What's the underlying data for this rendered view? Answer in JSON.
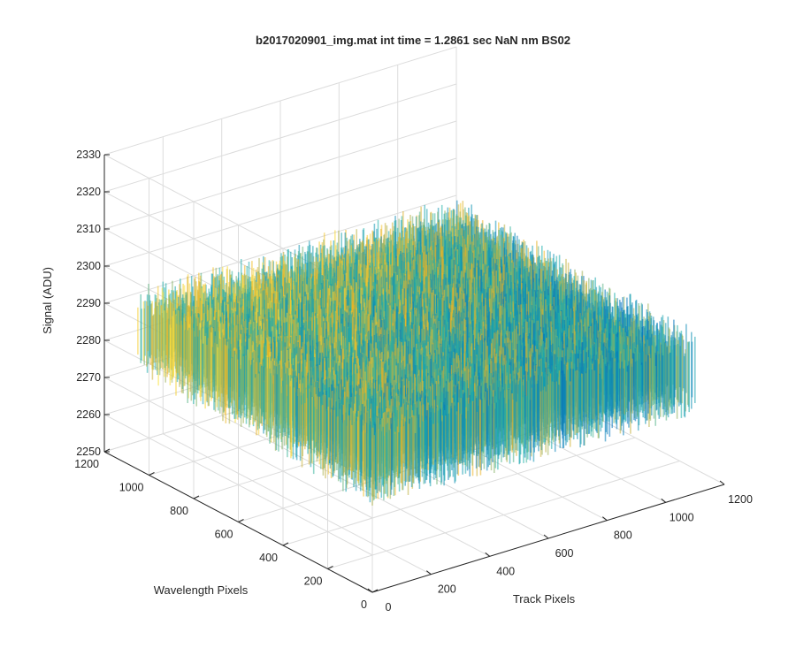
{
  "chart_data": {
    "type": "surface",
    "title": "b2017020901_img.mat int time = 1.2861 sec  NaN nm BS02",
    "xlabel": "Track Pixels",
    "ylabel": "Wavelength Pixels",
    "zlabel": "Signal (ADU)",
    "x_ticks": [
      0,
      200,
      400,
      600,
      800,
      1000,
      1200
    ],
    "y_ticks": [
      0,
      200,
      400,
      600,
      800,
      1000,
      1200
    ],
    "z_ticks": [
      2250,
      2260,
      2270,
      2280,
      2290,
      2300,
      2310,
      2320,
      2330
    ],
    "x_tick_labels": [
      "0",
      "200",
      "400",
      "600",
      "800",
      "1000",
      "1200"
    ],
    "y_tick_labels": [
      "0",
      "200",
      "400",
      "600",
      "800",
      "1000",
      "1200"
    ],
    "z_tick_labels": [
      "2250",
      "2260",
      "2270",
      "2280",
      "2290",
      "2300",
      "2310",
      "2320",
      "2330"
    ],
    "xlim": [
      0,
      1200
    ],
    "ylim": [
      0,
      1200
    ],
    "zlim": [
      2250,
      2330
    ],
    "data_extent": {
      "x": [
        0,
        1100
      ],
      "y": [
        0,
        1050
      ]
    },
    "mean_signal": 2285,
    "noise_half_range": 12,
    "colormap": "parula",
    "grid": true,
    "colors": {
      "low": "#0072bd",
      "mid": "#20b2aa",
      "high": "#edb120",
      "peak": "#f9e03c",
      "grid": "#dcdcdc",
      "axis": "#262626"
    }
  }
}
